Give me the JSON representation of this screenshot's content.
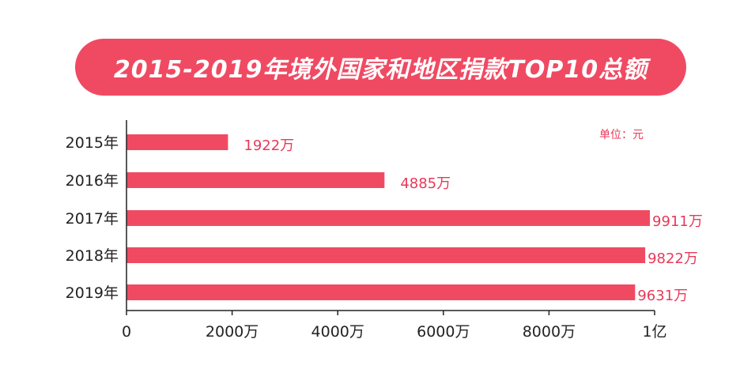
{
  "chart_data": {
    "type": "bar",
    "orientation": "horizontal",
    "title": "2015-2019年境外国家和地区捐款TOP10总额",
    "unit_note": "单位：元",
    "categories": [
      "2015年",
      "2016年",
      "2017年",
      "2018年",
      "2019年"
    ],
    "values": [
      19220000,
      48850000,
      99110000,
      98220000,
      96310000
    ],
    "value_labels": [
      "1922万",
      "4885万",
      "9911万",
      "9822万",
      "9631万"
    ],
    "xlim": [
      0,
      100000000
    ],
    "x_ticks": [
      0,
      20000000,
      40000000,
      60000000,
      80000000,
      100000000
    ],
    "x_tick_labels": [
      "0",
      "2000万",
      "4000万",
      "6000万",
      "8000万",
      "1亿"
    ],
    "grid": false,
    "colors": {
      "bar": "#f04a63",
      "title_bg": "#f04a63",
      "label": "#e8395a",
      "axis": "#222222"
    }
  }
}
